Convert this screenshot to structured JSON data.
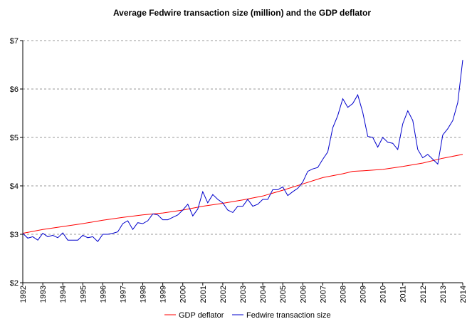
{
  "chart_data": {
    "type": "line",
    "title": "Average Fedwire transaction size (million) and the GDP deflator",
    "xlabel": "",
    "ylabel": "",
    "xlim": [
      1992,
      2014
    ],
    "ylim": [
      2,
      7
    ],
    "y_ticks": [
      "$2",
      "$3",
      "$4",
      "$5",
      "$6",
      "$7"
    ],
    "x_ticks": [
      "1992",
      "1993",
      "1994",
      "1995",
      "1996",
      "1997",
      "1998",
      "1999",
      "2000",
      "2001",
      "2002",
      "2003",
      "2004",
      "2005",
      "2006",
      "2007",
      "2008",
      "2009",
      "2010",
      "2011",
      "2012",
      "2013",
      "2014"
    ],
    "grid": "horizontal dashed",
    "legend_position": "bottom",
    "series": [
      {
        "name": "GDP deflator",
        "color": "#ff0000",
        "points": [
          [
            1992,
            3.02
          ],
          [
            1993,
            3.1
          ],
          [
            1994,
            3.16
          ],
          [
            1995,
            3.22
          ],
          [
            1996,
            3.29
          ],
          [
            1997,
            3.35
          ],
          [
            1998,
            3.4
          ],
          [
            1999,
            3.44
          ],
          [
            2000,
            3.5
          ],
          [
            2001,
            3.58
          ],
          [
            2002,
            3.64
          ],
          [
            2003,
            3.71
          ],
          [
            2004,
            3.79
          ],
          [
            2005,
            3.91
          ],
          [
            2006,
            4.04
          ],
          [
            2007,
            4.17
          ],
          [
            2008,
            4.25
          ],
          [
            2008.5,
            4.3
          ],
          [
            2009,
            4.31
          ],
          [
            2010,
            4.34
          ],
          [
            2011,
            4.4
          ],
          [
            2012,
            4.47
          ],
          [
            2013,
            4.57
          ],
          [
            2014,
            4.65
          ]
        ]
      },
      {
        "name": "Fedwire transaction size",
        "color": "#0000cc",
        "points": [
          [
            1992,
            3.02
          ],
          [
            1992.25,
            2.92
          ],
          [
            1992.5,
            2.95
          ],
          [
            1992.75,
            2.88
          ],
          [
            1993,
            3.02
          ],
          [
            1993.25,
            2.95
          ],
          [
            1993.5,
            2.98
          ],
          [
            1993.75,
            2.93
          ],
          [
            1994,
            3.03
          ],
          [
            1994.25,
            2.88
          ],
          [
            1994.5,
            2.88
          ],
          [
            1994.75,
            2.88
          ],
          [
            1995,
            2.98
          ],
          [
            1995.25,
            2.93
          ],
          [
            1995.5,
            2.95
          ],
          [
            1995.75,
            2.85
          ],
          [
            1996,
            3.0
          ],
          [
            1996.25,
            3.0
          ],
          [
            1996.5,
            3.02
          ],
          [
            1996.75,
            3.05
          ],
          [
            1997,
            3.22
          ],
          [
            1997.25,
            3.28
          ],
          [
            1997.5,
            3.1
          ],
          [
            1997.75,
            3.24
          ],
          [
            1998,
            3.22
          ],
          [
            1998.25,
            3.28
          ],
          [
            1998.5,
            3.42
          ],
          [
            1998.75,
            3.4
          ],
          [
            1999,
            3.3
          ],
          [
            1999.25,
            3.3
          ],
          [
            1999.5,
            3.35
          ],
          [
            1999.75,
            3.4
          ],
          [
            2000,
            3.5
          ],
          [
            2000.25,
            3.62
          ],
          [
            2000.5,
            3.38
          ],
          [
            2000.75,
            3.52
          ],
          [
            2001,
            3.88
          ],
          [
            2001.25,
            3.65
          ],
          [
            2001.5,
            3.82
          ],
          [
            2001.75,
            3.72
          ],
          [
            2002,
            3.65
          ],
          [
            2002.25,
            3.5
          ],
          [
            2002.5,
            3.45
          ],
          [
            2002.75,
            3.58
          ],
          [
            2003,
            3.58
          ],
          [
            2003.25,
            3.72
          ],
          [
            2003.5,
            3.58
          ],
          [
            2003.75,
            3.62
          ],
          [
            2004,
            3.72
          ],
          [
            2004.25,
            3.72
          ],
          [
            2004.5,
            3.92
          ],
          [
            2004.75,
            3.92
          ],
          [
            2005,
            3.98
          ],
          [
            2005.25,
            3.8
          ],
          [
            2005.5,
            3.88
          ],
          [
            2005.75,
            3.95
          ],
          [
            2006,
            4.08
          ],
          [
            2006.25,
            4.3
          ],
          [
            2006.5,
            4.35
          ],
          [
            2006.75,
            4.38
          ],
          [
            2007,
            4.55
          ],
          [
            2007.25,
            4.7
          ],
          [
            2007.5,
            5.2
          ],
          [
            2007.75,
            5.45
          ],
          [
            2008,
            5.8
          ],
          [
            2008.25,
            5.62
          ],
          [
            2008.5,
            5.7
          ],
          [
            2008.75,
            5.88
          ],
          [
            2009,
            5.52
          ],
          [
            2009.25,
            5.02
          ],
          [
            2009.5,
            5.0
          ],
          [
            2009.75,
            4.8
          ],
          [
            2010,
            5.0
          ],
          [
            2010.25,
            4.9
          ],
          [
            2010.5,
            4.88
          ],
          [
            2010.75,
            4.75
          ],
          [
            2011,
            5.28
          ],
          [
            2011.25,
            5.55
          ],
          [
            2011.5,
            5.35
          ],
          [
            2011.75,
            4.75
          ],
          [
            2012,
            4.58
          ],
          [
            2012.25,
            4.65
          ],
          [
            2012.5,
            4.55
          ],
          [
            2012.75,
            4.45
          ],
          [
            2013,
            5.05
          ],
          [
            2013.25,
            5.18
          ],
          [
            2013.5,
            5.35
          ],
          [
            2013.75,
            5.72
          ],
          [
            2014,
            6.6
          ]
        ]
      }
    ]
  }
}
